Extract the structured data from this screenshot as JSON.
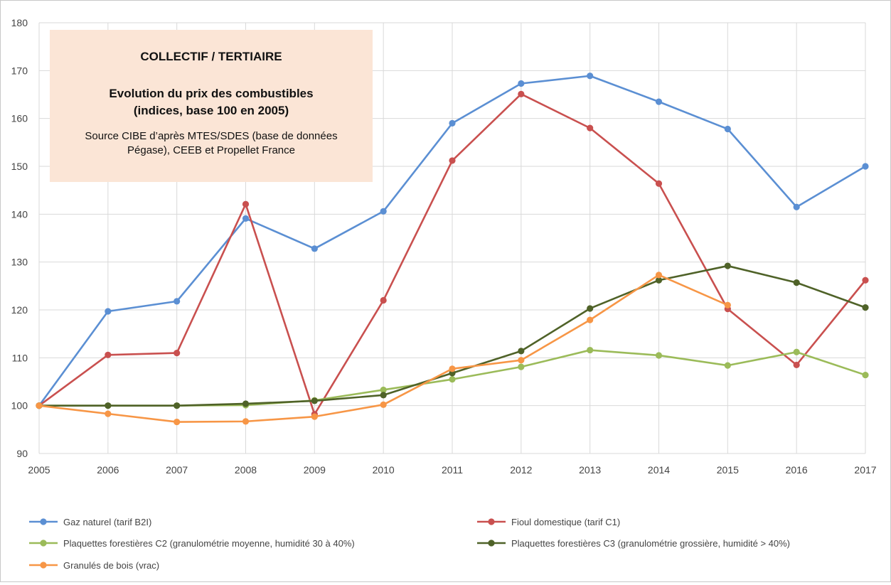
{
  "chart_data": {
    "type": "line",
    "title": "COLLECTIF / TERTIAIRE",
    "subtitle": "Evolution du prix des combustibles\n(indices, base 100 en 2005)",
    "source": "Source CIBE d’après MTES/SDES (base de données\nPégase), CEEB et Propellet France",
    "x": [
      "2005",
      "2006",
      "2007",
      "2008",
      "2009",
      "2010",
      "2011",
      "2012",
      "2013",
      "2014",
      "2015",
      "2016",
      "2017"
    ],
    "ylim": [
      90,
      180
    ],
    "yticks": [
      90,
      100,
      110,
      120,
      130,
      140,
      150,
      160,
      170,
      180
    ],
    "grid": true,
    "legend_position": "bottom",
    "series": [
      {
        "name": "Gaz naturel (tarif B2I)",
        "color": "#5b8fd3",
        "values": [
          100,
          119.7,
          121.8,
          139.1,
          132.8,
          140.6,
          159.0,
          167.3,
          168.9,
          163.5,
          157.8,
          141.5,
          150.0
        ]
      },
      {
        "name": "Fioul domestique (tarif C1)",
        "color": "#c9504f",
        "values": [
          100,
          110.6,
          111.0,
          142.1,
          98.2,
          122.0,
          151.2,
          165.1,
          158.0,
          146.4,
          120.2,
          108.5,
          126.2
        ]
      },
      {
        "name": "Plaquettes forestières C2  (granulométrie moyenne, humidité 30 à 40%)",
        "color": "#9bbb59",
        "values": [
          100,
          100,
          100,
          100.1,
          101.1,
          103.3,
          105.5,
          108.1,
          111.6,
          110.5,
          108.4,
          111.2,
          106.4
        ]
      },
      {
        "name": "Plaquettes forestières C3 (granulométrie grossière, humidité > 40%)",
        "color": "#4f6228",
        "values": [
          100,
          100,
          100,
          100.4,
          101.0,
          102.2,
          106.8,
          111.4,
          120.3,
          126.2,
          129.2,
          125.7,
          120.5
        ]
      },
      {
        "name": "Granulés de bois (vrac)",
        "color": "#f79646",
        "values": [
          100,
          98.3,
          96.6,
          96.7,
          97.7,
          100.2,
          107.7,
          109.5,
          117.9,
          127.3,
          121.0,
          null,
          null
        ]
      }
    ]
  }
}
